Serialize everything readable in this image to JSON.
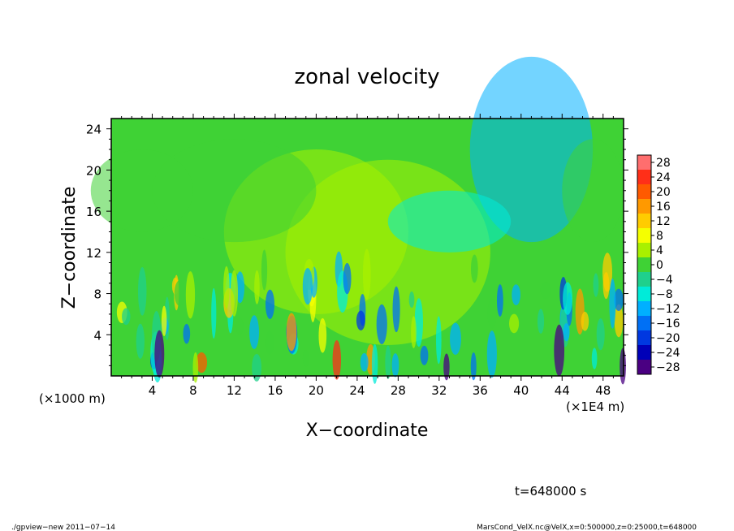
{
  "chart_data": {
    "type": "heatmap",
    "title": "zonal velocity",
    "xlabel": "X−coordinate",
    "ylabel": "Z−coordinate",
    "x_unit_left": "(×1000 m)",
    "x_unit_right": "(×1E4 m)",
    "x_ticks": [
      "4",
      "8",
      "12",
      "16",
      "20",
      "24",
      "28",
      "32",
      "36",
      "40",
      "44",
      "48"
    ],
    "x_tick_values": [
      4,
      8,
      12,
      16,
      20,
      24,
      28,
      32,
      36,
      40,
      44,
      48
    ],
    "y_ticks": [
      "4",
      "8",
      "12",
      "16",
      "20",
      "24"
    ],
    "y_tick_values": [
      4,
      8,
      12,
      16,
      20,
      24
    ],
    "xlim": [
      0,
      50
    ],
    "ylim": [
      0,
      25
    ],
    "colorbar": {
      "labels": [
        "28",
        "24",
        "20",
        "16",
        "12",
        "8",
        "4",
        "0",
        "−4",
        "−8",
        "−12",
        "−16",
        "−20",
        "−24",
        "−28"
      ],
      "levels": [
        28,
        24,
        20,
        16,
        12,
        8,
        4,
        0,
        -4,
        -8,
        -12,
        -16,
        -20,
        -24,
        -28
      ],
      "colors": [
        "#ff6e6e",
        "#ff2f18",
        "#ff5a00",
        "#ff9900",
        "#ffcc00",
        "#f5ff00",
        "#a8f000",
        "#3fd235",
        "#1fd08c",
        "#00ebd9",
        "#00b0ff",
        "#0070f5",
        "#0038e0",
        "#0000b8",
        "#4a0082"
      ]
    },
    "annotation_time": "t=648000 s",
    "footer_left": "./gpview−new  2011−07−14",
    "footer_right": "MarsCond_VelX.nc@VelX,x=0:500000,z=0:25000,t=648000"
  }
}
